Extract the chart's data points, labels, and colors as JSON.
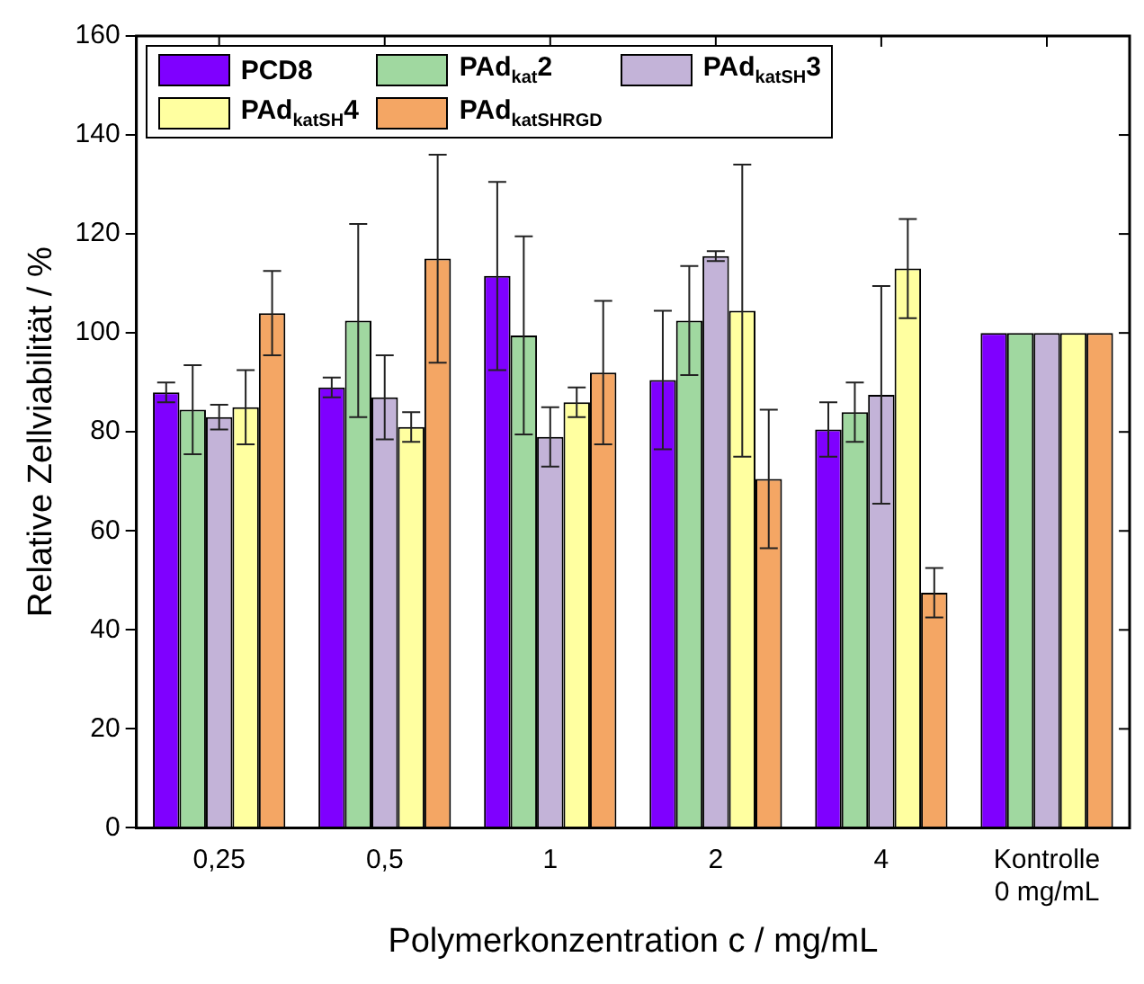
{
  "chart_data": {
    "type": "bar",
    "xlabel": "Polymerkonzentration c / mg/mL",
    "ylabel": "Relative Zellviabilität / %",
    "categories": [
      "0,25",
      "0,5",
      "1",
      "2",
      "4",
      "Kontrolle\n0 mg/mL"
    ],
    "series": [
      {
        "name": "PCD8",
        "color": "#7f00ff",
        "values": [
          88,
          89,
          111.5,
          90.5,
          80.5,
          100
        ],
        "errors": [
          2,
          2,
          19,
          14,
          5.5,
          null
        ]
      },
      {
        "name": "PAd$_{kat}$2",
        "color": "#a0d8a0",
        "values": [
          84.5,
          102.5,
          99.5,
          102.5,
          84,
          100
        ],
        "errors": [
          9,
          19.5,
          20,
          11,
          6,
          null
        ]
      },
      {
        "name": "PAd$_{katSH}$3",
        "color": "#c3b3d8",
        "values": [
          83,
          87,
          79,
          115.5,
          87.5,
          100
        ],
        "errors": [
          2.5,
          8.5,
          6,
          1,
          22,
          null
        ]
      },
      {
        "name": "PAd$_{katSH}$4",
        "color": "#ffffa0",
        "values": [
          85,
          81,
          86,
          104.5,
          113,
          100
        ],
        "errors": [
          7.5,
          3,
          3,
          29.5,
          10,
          null
        ]
      },
      {
        "name": "PAd$_{katSHRGD}$",
        "color": "#f4a664",
        "values": [
          104,
          115,
          92,
          70.5,
          47.5,
          100
        ],
        "errors": [
          8.5,
          21,
          14.5,
          14,
          5,
          null
        ]
      }
    ],
    "ylim": [
      0,
      160
    ],
    "yticks": [
      0,
      20,
      40,
      60,
      80,
      100,
      120,
      140,
      160
    ],
    "grid": false,
    "legend": "top left"
  }
}
